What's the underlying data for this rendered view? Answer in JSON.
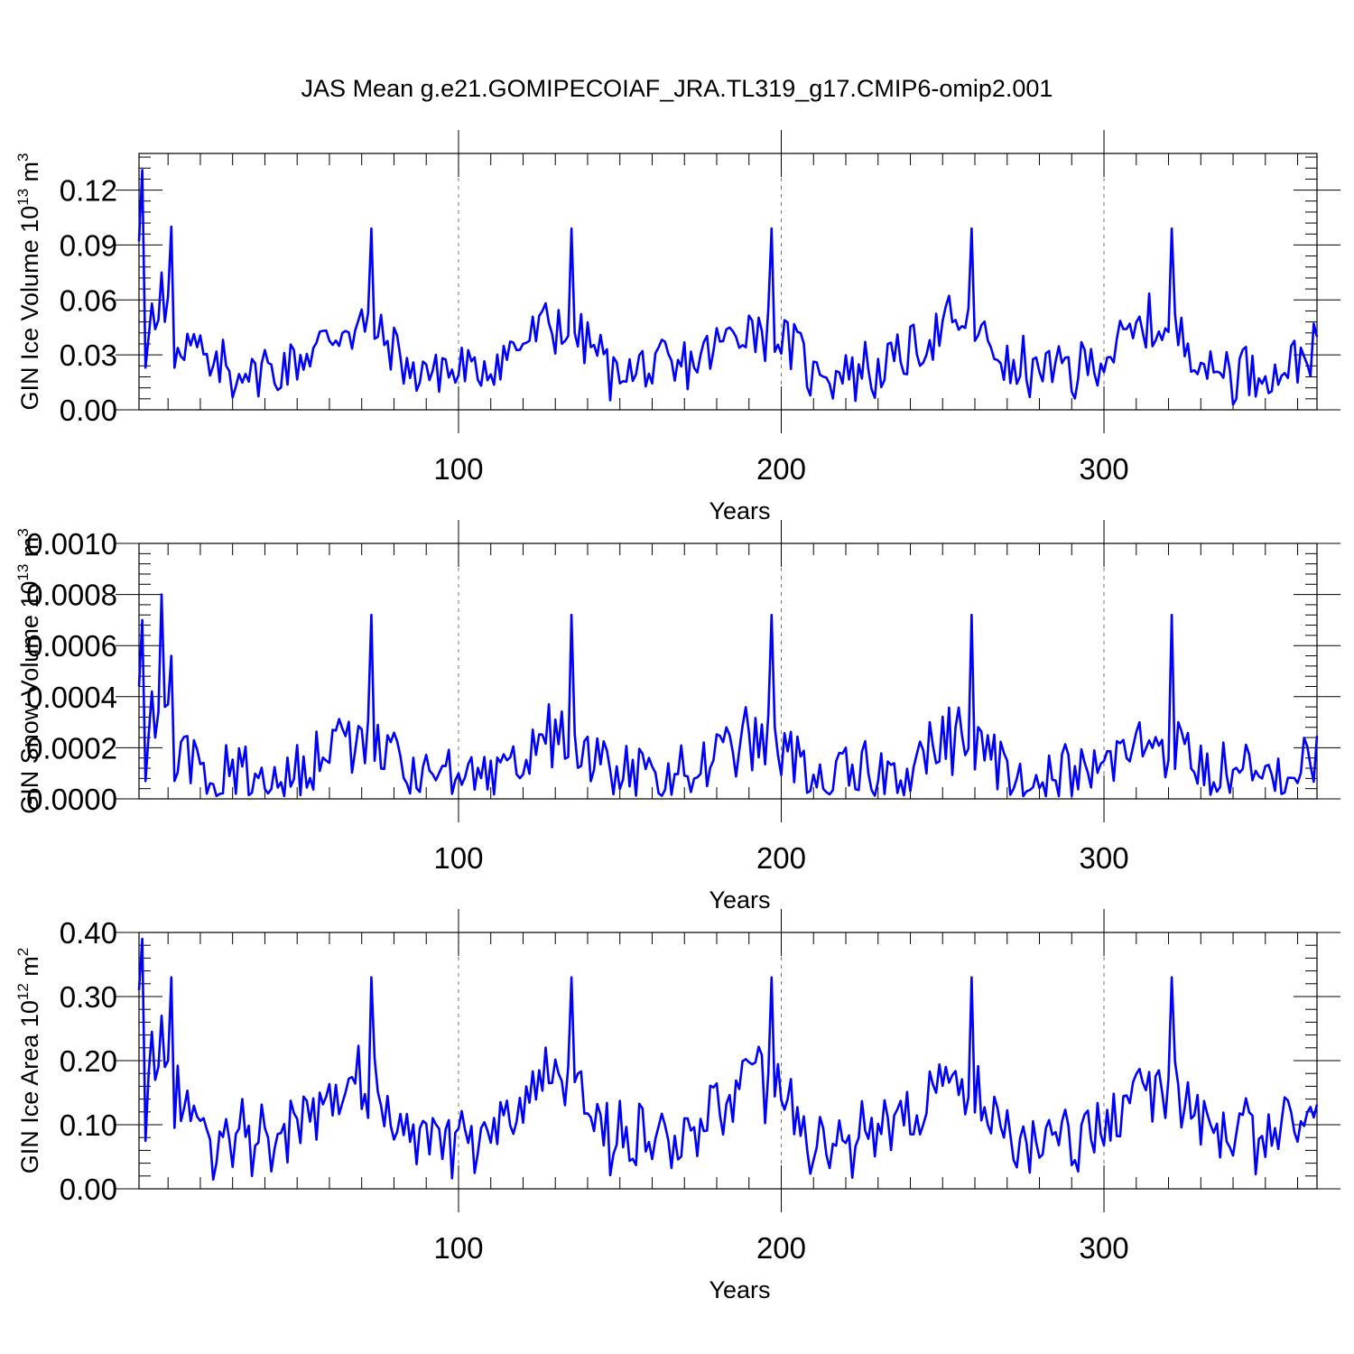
{
  "title": "JAS Mean g.e21.GOMIPECOIAF_JRA.TL319_g17.CMIP6-omip2.001",
  "chart_data": [
    {
      "type": "line",
      "ylabel": "GIN Ice Volume 10",
      "ylabel_exp": "13",
      "ylabel_unit": " m",
      "ylabel_unit_exp": "3",
      "xlabel": "Years",
      "xlim": [
        1,
        366
      ],
      "ylim": [
        0.0,
        0.14
      ],
      "yticks": [
        0.0,
        0.03,
        0.06,
        0.09,
        0.12
      ],
      "ytick_labels": [
        "0.00",
        "0.03",
        "0.06",
        "0.09",
        "0.12"
      ],
      "xticks": [
        100,
        200,
        300
      ],
      "xtick_labels": [
        "100",
        "200",
        "300"
      ],
      "line_color": "#0000ff",
      "grid": "vertical dashed at major x ticks",
      "series": [
        {
          "name": "GIN Ice Volume",
          "base": 0.03,
          "amp": 0.017,
          "noise": 0.014,
          "peak": 0.099,
          "first": [
            0.092,
            0.131,
            0.023,
            0.04,
            0.058,
            0.044,
            0.049,
            0.075,
            0.048,
            0.062,
            0.1,
            0.023
          ]
        }
      ]
    },
    {
      "type": "line",
      "ylabel": "GIN Snow Volume 10",
      "ylabel_exp": "13",
      "ylabel_unit": " m",
      "ylabel_unit_exp": "3",
      "xlabel": "Years",
      "xlim": [
        1,
        366
      ],
      "ylim": [
        0.0,
        0.001
      ],
      "yticks": [
        0.0,
        0.0002,
        0.0004,
        0.0006,
        0.0008,
        0.001
      ],
      "ytick_labels": [
        "0.0000",
        "0.0002",
        "0.0004",
        "0.0006",
        "0.0008",
        "0.0010"
      ],
      "xticks": [
        100,
        200,
        300
      ],
      "xtick_labels": [
        "100",
        "200",
        "300"
      ],
      "line_color": "#0000ff",
      "grid": "vertical dashed at major x ticks",
      "series": [
        {
          "name": "GIN Snow Volume",
          "base": 0.00013,
          "amp": 0.00011,
          "noise": 0.00012,
          "peak": 0.00072,
          "first": [
            0.00044,
            0.0007,
            7e-05,
            0.00025,
            0.00042,
            0.00024,
            0.00034,
            0.0008,
            0.00036,
            0.00037,
            0.00056,
            7e-05
          ]
        }
      ]
    },
    {
      "type": "line",
      "ylabel": "GIN Ice Area 10",
      "ylabel_exp": "12",
      "ylabel_unit": " m",
      "ylabel_unit_exp": "2",
      "xlabel": "Years",
      "xlim": [
        1,
        366
      ],
      "ylim": [
        0.0,
        0.4
      ],
      "yticks": [
        0.0,
        0.1,
        0.2,
        0.3,
        0.4
      ],
      "ytick_labels": [
        "0.00",
        "0.10",
        "0.20",
        "0.30",
        "0.40"
      ],
      "xticks": [
        100,
        200,
        300
      ],
      "xtick_labels": [
        "100",
        "200",
        "300"
      ],
      "line_color": "#0000ff",
      "grid": "vertical dashed at major x ticks",
      "series": [
        {
          "name": "GIN Ice Area",
          "base": 0.11,
          "amp": 0.06,
          "noise": 0.05,
          "peak": 0.33,
          "first": [
            0.31,
            0.39,
            0.075,
            0.18,
            0.245,
            0.17,
            0.19,
            0.27,
            0.19,
            0.2,
            0.33,
            0.095
          ]
        }
      ]
    }
  ]
}
